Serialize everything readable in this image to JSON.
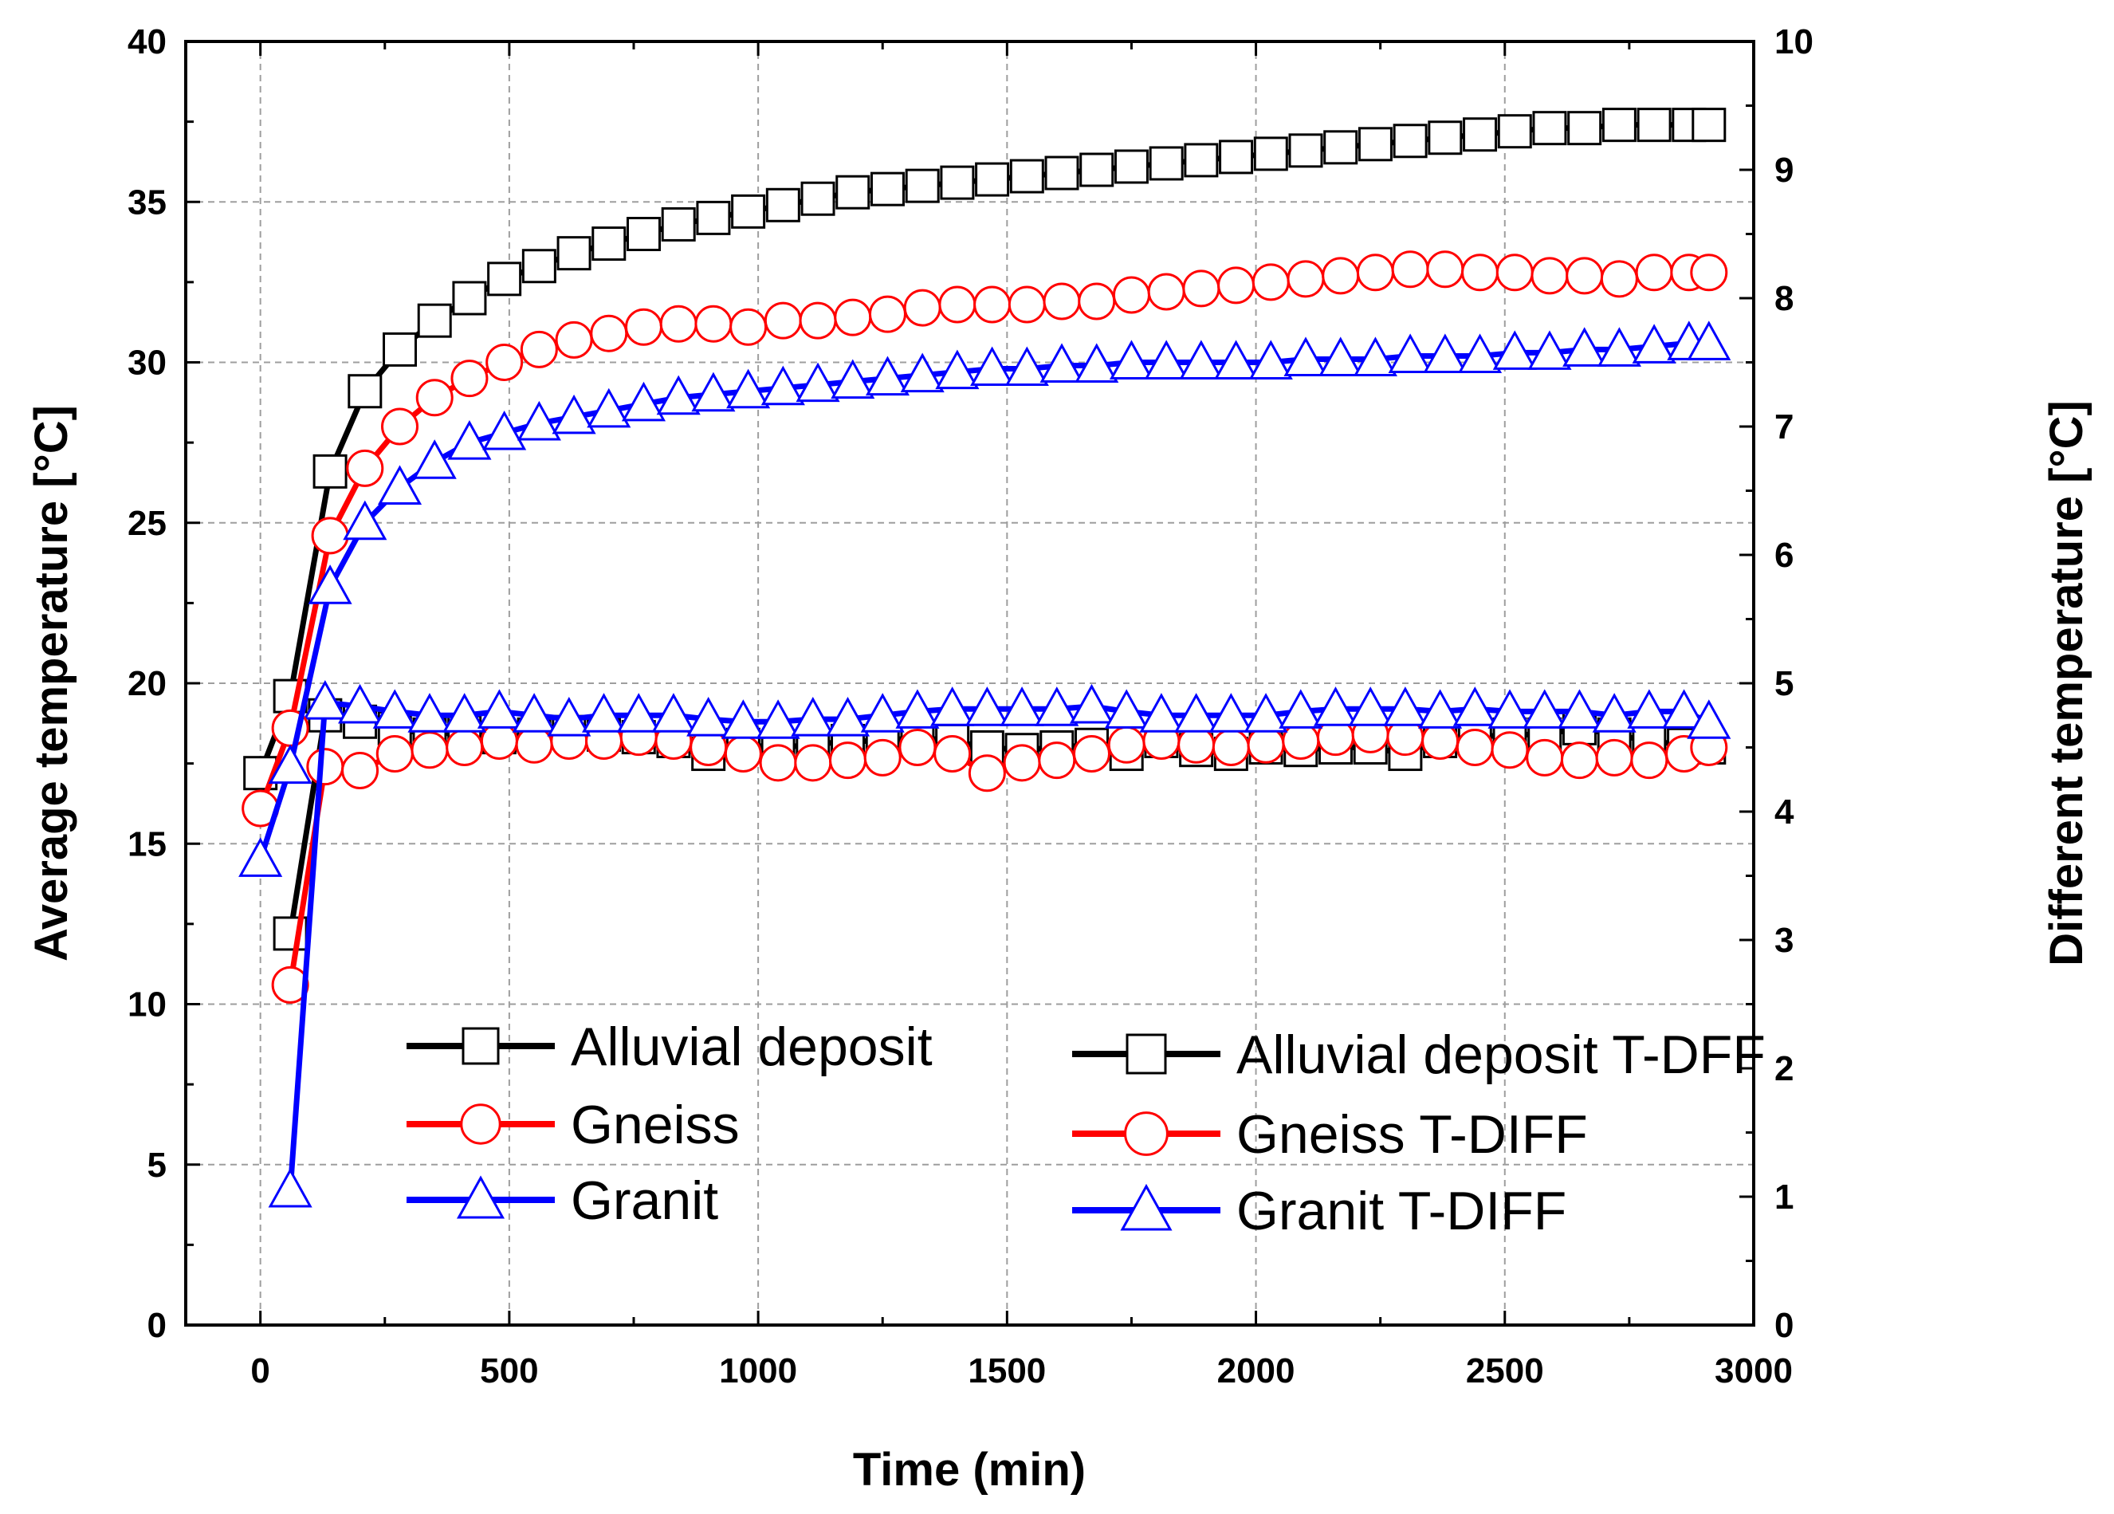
{
  "chart_data": {
    "type": "line",
    "title": "",
    "xlabel": "Time (min)",
    "ylabel": "Average temperature [°C]",
    "y2label": "Different temperature [°C]",
    "xlim": [
      -150,
      3000
    ],
    "ylim": [
      0,
      40
    ],
    "y2lim": [
      0,
      10
    ],
    "xticks": [
      0,
      500,
      1000,
      1500,
      2000,
      2500,
      3000
    ],
    "yticks": [
      0,
      5,
      10,
      15,
      20,
      25,
      30,
      35,
      40
    ],
    "y2ticks": [
      0,
      1,
      2,
      3,
      4,
      5,
      6,
      7,
      8,
      9,
      10
    ],
    "grid": true,
    "legend": "bottom-left",
    "series": [
      {
        "name": "Alluvial deposit",
        "axis": "left",
        "color": "#000000",
        "marker": "square",
        "x": [
          0,
          60,
          140,
          210,
          280,
          350,
          420,
          490,
          560,
          630,
          700,
          770,
          840,
          910,
          980,
          1050,
          1120,
          1190,
          1260,
          1330,
          1400,
          1470,
          1540,
          1610,
          1680,
          1750,
          1820,
          1890,
          1960,
          2030,
          2100,
          2170,
          2240,
          2310,
          2380,
          2450,
          2520,
          2590,
          2660,
          2730,
          2800,
          2870,
          2910
        ],
        "values": [
          17.2,
          19.6,
          26.6,
          29.1,
          30.4,
          31.3,
          32.0,
          32.6,
          33.0,
          33.4,
          33.7,
          34.0,
          34.3,
          34.5,
          34.7,
          34.9,
          35.1,
          35.3,
          35.4,
          35.5,
          35.6,
          35.7,
          35.8,
          35.9,
          36.0,
          36.1,
          36.2,
          36.3,
          36.4,
          36.5,
          36.6,
          36.7,
          36.8,
          36.9,
          37.0,
          37.1,
          37.2,
          37.3,
          37.3,
          37.4,
          37.4,
          37.4,
          37.4
        ]
      },
      {
        "name": "Gneiss",
        "axis": "left",
        "color": "#ff0000",
        "marker": "circle",
        "x": [
          0,
          60,
          140,
          210,
          280,
          350,
          420,
          490,
          560,
          630,
          700,
          770,
          840,
          910,
          980,
          1050,
          1120,
          1190,
          1260,
          1330,
          1400,
          1470,
          1540,
          1610,
          1680,
          1750,
          1820,
          1890,
          1960,
          2030,
          2100,
          2170,
          2240,
          2310,
          2380,
          2450,
          2520,
          2590,
          2660,
          2730,
          2800,
          2870,
          2910
        ],
        "values": [
          16.1,
          18.6,
          24.6,
          26.7,
          28.0,
          28.9,
          29.5,
          30.0,
          30.4,
          30.7,
          30.9,
          31.1,
          31.2,
          31.2,
          31.1,
          31.3,
          31.3,
          31.4,
          31.5,
          31.7,
          31.8,
          31.8,
          31.8,
          31.9,
          31.9,
          32.1,
          32.2,
          32.3,
          32.4,
          32.5,
          32.6,
          32.7,
          32.8,
          32.9,
          32.9,
          32.8,
          32.8,
          32.7,
          32.7,
          32.6,
          32.8,
          32.8,
          32.8
        ]
      },
      {
        "name": "Granit",
        "axis": "left",
        "color": "#0000ff",
        "marker": "triangle",
        "x": [
          0,
          60,
          140,
          210,
          280,
          350,
          420,
          490,
          560,
          630,
          700,
          770,
          840,
          910,
          980,
          1050,
          1120,
          1190,
          1260,
          1330,
          1400,
          1470,
          1540,
          1610,
          1680,
          1750,
          1820,
          1890,
          1960,
          2030,
          2100,
          2170,
          2240,
          2310,
          2380,
          2450,
          2520,
          2590,
          2660,
          2730,
          2800,
          2870,
          2910
        ],
        "values": [
          14.5,
          17.4,
          23.0,
          25.0,
          26.1,
          26.9,
          27.5,
          27.8,
          28.1,
          28.3,
          28.5,
          28.7,
          28.9,
          29.0,
          29.1,
          29.2,
          29.3,
          29.4,
          29.5,
          29.6,
          29.7,
          29.8,
          29.8,
          29.9,
          29.9,
          30.0,
          30.0,
          30.0,
          30.0,
          30.0,
          30.1,
          30.1,
          30.1,
          30.2,
          30.2,
          30.2,
          30.3,
          30.3,
          30.4,
          30.4,
          30.5,
          30.6,
          30.6
        ]
      },
      {
        "name": "Alluvial deposit T-DFF",
        "axis": "right",
        "color": "#000000",
        "marker": "square",
        "x": [
          60,
          130,
          200,
          270,
          340,
          410,
          480,
          550,
          620,
          690,
          760,
          830,
          900,
          970,
          1040,
          1110,
          1180,
          1250,
          1320,
          1390,
          1460,
          1530,
          1600,
          1670,
          1740,
          1810,
          1880,
          1950,
          2020,
          2090,
          2160,
          2230,
          2300,
          2370,
          2440,
          2510,
          2580,
          2650,
          2720,
          2790,
          2860,
          2910
        ],
        "values": [
          3.05,
          4.75,
          4.7,
          4.65,
          4.6,
          4.62,
          4.58,
          4.6,
          4.62,
          4.6,
          4.58,
          4.55,
          4.45,
          4.52,
          4.5,
          4.52,
          4.55,
          4.55,
          4.58,
          4.55,
          4.5,
          4.48,
          4.5,
          4.52,
          4.45,
          4.55,
          4.48,
          4.45,
          4.5,
          4.48,
          4.5,
          4.5,
          4.45,
          4.55,
          4.58,
          4.6,
          4.6,
          4.65,
          4.6,
          4.55,
          4.52,
          4.5
        ]
      },
      {
        "name": "Gneiss T-DIFF",
        "axis": "right",
        "color": "#ff0000",
        "marker": "circle",
        "x": [
          60,
          130,
          200,
          270,
          340,
          410,
          480,
          550,
          620,
          690,
          760,
          830,
          900,
          970,
          1040,
          1110,
          1180,
          1250,
          1320,
          1390,
          1460,
          1530,
          1600,
          1670,
          1740,
          1810,
          1880,
          1950,
          2020,
          2090,
          2160,
          2230,
          2300,
          2370,
          2440,
          2510,
          2580,
          2650,
          2720,
          2790,
          2860,
          2910
        ],
        "values": [
          2.65,
          4.35,
          4.32,
          4.45,
          4.48,
          4.5,
          4.55,
          4.52,
          4.55,
          4.55,
          4.58,
          4.55,
          4.5,
          4.45,
          4.38,
          4.38,
          4.4,
          4.42,
          4.5,
          4.45,
          4.3,
          4.38,
          4.4,
          4.45,
          4.52,
          4.55,
          4.52,
          4.5,
          4.52,
          4.55,
          4.58,
          4.6,
          4.58,
          4.55,
          4.5,
          4.48,
          4.42,
          4.4,
          4.42,
          4.4,
          4.45,
          4.5
        ]
      },
      {
        "name": "Granit T-DIFF",
        "axis": "right",
        "color": "#0000ff",
        "marker": "triangle",
        "x": [
          60,
          130,
          200,
          270,
          340,
          410,
          480,
          550,
          620,
          690,
          760,
          830,
          900,
          970,
          1040,
          1110,
          1180,
          1250,
          1320,
          1390,
          1460,
          1530,
          1600,
          1670,
          1740,
          1810,
          1880,
          1950,
          2020,
          2090,
          2160,
          2230,
          2300,
          2370,
          2440,
          2510,
          2580,
          2650,
          2720,
          2790,
          2860,
          2910
        ],
        "values": [
          1.05,
          4.85,
          4.82,
          4.78,
          4.75,
          4.75,
          4.78,
          4.75,
          4.72,
          4.75,
          4.75,
          4.75,
          4.72,
          4.7,
          4.7,
          4.72,
          4.72,
          4.75,
          4.78,
          4.8,
          4.8,
          4.8,
          4.8,
          4.82,
          4.78,
          4.75,
          4.75,
          4.75,
          4.75,
          4.78,
          4.8,
          4.8,
          4.8,
          4.78,
          4.8,
          4.78,
          4.78,
          4.78,
          4.75,
          4.78,
          4.78,
          4.7
        ]
      }
    ]
  }
}
